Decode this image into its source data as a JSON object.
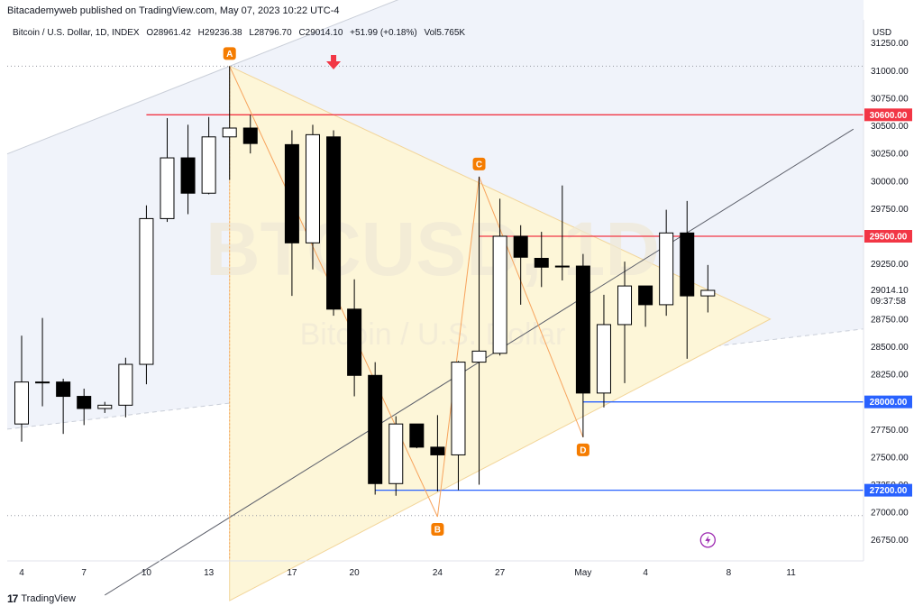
{
  "publisher_line": "Bitacademyweb published on TradingView.com, May 07, 2023 10:22 UTC-4",
  "footer_brand": "TradingView",
  "watermark": {
    "symbol": "BTCUSD, 1D",
    "name": "Bitcoin / U.S. Dollar"
  },
  "legend": {
    "title": "Bitcoin / U.S. Dollar, 1D, INDEX",
    "open": "O28961.42",
    "high": "H29236.38",
    "low": "L28796.70",
    "close": "C29014.10",
    "change": "+51.99 (+0.18%)",
    "volume": "Vol5.765K"
  },
  "price_scale": {
    "currency": "USD",
    "ticks": [
      "31250.00",
      "31000.00",
      "30750.00",
      "30500.00",
      "30250.00",
      "30000.00",
      "29750.00",
      "29250.00",
      "28750.00",
      "28500.00",
      "28250.00",
      "27750.00",
      "27500.00",
      "27250.00",
      "27000.00",
      "26750.00"
    ],
    "current_price": "29014.10",
    "countdown": "09:37:58",
    "level_labels": [
      "30600.00",
      "29500.00",
      "28000.00",
      "27200.00"
    ]
  },
  "colors": {
    "up_body": "#ffffff",
    "down_body": "#000000",
    "wick": "#000000",
    "resistance": "#f23645",
    "support": "#2962ff",
    "triangle_fill": "#fdf6d8",
    "pattern_line": "#f7a35c",
    "point_marker": "#f57c00",
    "arrow": "#f23645",
    "channel_band": "#f0f3fa"
  },
  "chart_data": {
    "type": "candlestick",
    "ylim": [
      26560,
      31460
    ],
    "x_ticks": [
      {
        "day": 4,
        "label": "4"
      },
      {
        "day": 7,
        "label": "7"
      },
      {
        "day": 10,
        "label": "10"
      },
      {
        "day": 13,
        "label": "13"
      },
      {
        "day": 17,
        "label": "17"
      },
      {
        "day": 20,
        "label": "20"
      },
      {
        "day": 24,
        "label": "24"
      },
      {
        "day": 27,
        "label": "27"
      },
      {
        "day": 31,
        "label": "May"
      },
      {
        "day": 34,
        "label": "4"
      },
      {
        "day": 38,
        "label": "8"
      },
      {
        "day": 41,
        "label": "11"
      }
    ],
    "candles": [
      {
        "day": 4,
        "o": 27800,
        "h": 28600,
        "l": 27640,
        "c": 28180
      },
      {
        "day": 5,
        "o": 28180,
        "h": 28760,
        "l": 27960,
        "c": 28180
      },
      {
        "day": 6,
        "o": 28180,
        "h": 28210,
        "l": 27710,
        "c": 28050
      },
      {
        "day": 7,
        "o": 28050,
        "h": 28120,
        "l": 27790,
        "c": 27940
      },
      {
        "day": 8,
        "o": 27940,
        "h": 28000,
        "l": 27900,
        "c": 27970
      },
      {
        "day": 9,
        "o": 27970,
        "h": 28400,
        "l": 27860,
        "c": 28340
      },
      {
        "day": 10,
        "o": 28340,
        "h": 29780,
        "l": 28160,
        "c": 29660
      },
      {
        "day": 11,
        "o": 29660,
        "h": 30570,
        "l": 29630,
        "c": 30210
      },
      {
        "day": 12,
        "o": 30210,
        "h": 30510,
        "l": 29700,
        "c": 29890
      },
      {
        "day": 13,
        "o": 29890,
        "h": 30580,
        "l": 29880,
        "c": 30400
      },
      {
        "day": 14,
        "o": 30400,
        "h": 31040,
        "l": 30010,
        "c": 30480
      },
      {
        "day": 15,
        "o": 30480,
        "h": 30600,
        "l": 30250,
        "c": 30340
      },
      {
        "day": 17,
        "o": 30330,
        "h": 30460,
        "l": 28960,
        "c": 29440
      },
      {
        "day": 18,
        "o": 29440,
        "h": 30510,
        "l": 29200,
        "c": 30420
      },
      {
        "day": 19,
        "o": 30400,
        "h": 30460,
        "l": 28780,
        "c": 28840
      },
      {
        "day": 20,
        "o": 28840,
        "h": 29110,
        "l": 28050,
        "c": 28240
      },
      {
        "day": 21,
        "o": 28240,
        "h": 28360,
        "l": 27160,
        "c": 27260
      },
      {
        "day": 22,
        "o": 27260,
        "h": 27870,
        "l": 27150,
        "c": 27800
      },
      {
        "day": 23,
        "o": 27800,
        "h": 27800,
        "l": 27580,
        "c": 27590
      },
      {
        "day": 24,
        "o": 27590,
        "h": 27880,
        "l": 27190,
        "c": 27520
      },
      {
        "day": 25,
        "o": 27520,
        "h": 28370,
        "l": 27200,
        "c": 28360
      },
      {
        "day": 26,
        "o": 28360,
        "h": 30040,
        "l": 27250,
        "c": 28460
      },
      {
        "day": 27,
        "o": 28440,
        "h": 29840,
        "l": 28420,
        "c": 29500
      },
      {
        "day": 28,
        "o": 29500,
        "h": 29600,
        "l": 28880,
        "c": 29310
      },
      {
        "day": 29,
        "o": 29300,
        "h": 29540,
        "l": 29040,
        "c": 29220
      },
      {
        "day": 30,
        "o": 29230,
        "h": 29960,
        "l": 29100,
        "c": 29230
      },
      {
        "day": 31,
        "o": 29230,
        "h": 29340,
        "l": 27680,
        "c": 28080
      },
      {
        "day": 32,
        "o": 28080,
        "h": 28970,
        "l": 27950,
        "c": 28700
      },
      {
        "day": 33,
        "o": 28700,
        "h": 29270,
        "l": 28170,
        "c": 29050
      },
      {
        "day": 34,
        "o": 29050,
        "h": 29050,
        "l": 28680,
        "c": 28880
      },
      {
        "day": 35,
        "o": 28880,
        "h": 29740,
        "l": 28780,
        "c": 29530
      },
      {
        "day": 36,
        "o": 29530,
        "h": 29820,
        "l": 28390,
        "c": 28960
      },
      {
        "day": 37,
        "o": 28960,
        "h": 29240,
        "l": 28810,
        "c": 29010
      }
    ],
    "horizontal_levels": [
      {
        "price": 30600,
        "color": "resistance",
        "from_day": 10
      },
      {
        "price": 29500,
        "color": "resistance",
        "from_day": 26
      },
      {
        "price": 28000,
        "color": "support",
        "from_day": 31
      },
      {
        "price": 27200,
        "color": "support",
        "from_day": 21
      }
    ],
    "dotted_levels": [
      31040,
      26970
    ],
    "pattern_points": [
      {
        "label": "A",
        "day": 14,
        "price": 31040,
        "marker": "above"
      },
      {
        "label": "B",
        "day": 24,
        "price": 26960,
        "marker": "below"
      },
      {
        "label": "C",
        "day": 26,
        "price": 30040,
        "marker": "above"
      },
      {
        "label": "D",
        "day": 31,
        "price": 27680,
        "marker": "below"
      }
    ],
    "triangle": {
      "top": {
        "day": 14,
        "price": 31040
      },
      "bottom": {
        "day": 14,
        "price": 26200
      },
      "apex": {
        "day": 40,
        "price": 28750
      }
    },
    "trendline": {
      "start": {
        "day": 8,
        "price": 26250
      },
      "end": {
        "day": 44,
        "price": 30470
      }
    },
    "channel": {
      "upper_a": {
        "day": 0,
        "price": 30000
      },
      "upper_b": {
        "day": 14,
        "price": 31040
      },
      "lower_a": {
        "day": 0,
        "price": 27680
      },
      "lower_b": {
        "day": 44,
        "price": 28650
      }
    },
    "arrow": {
      "day": 19,
      "price": 31060
    },
    "bottom_icon": {
      "day": 37,
      "price": 26700
    }
  }
}
